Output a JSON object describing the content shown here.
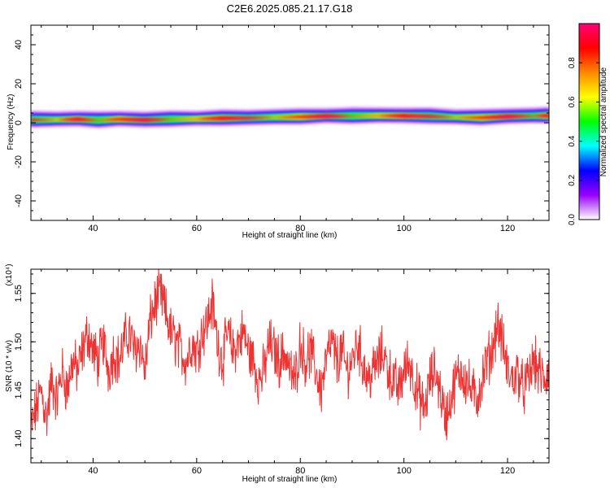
{
  "title": "C2E6.2025.085.21.17.G18",
  "colors": {
    "snr_line": "#ee3333",
    "plot_bg": "#ffffff",
    "axis": "#000000"
  },
  "chart_data": [
    {
      "type": "heatmap",
      "name": "spectrogram",
      "xlabel": "Height of straight line (km)",
      "ylabel": "Frequency (Hz)",
      "xlim": [
        28,
        128
      ],
      "ylim": [
        -50,
        50
      ],
      "x_ticks": [
        40,
        60,
        80,
        100,
        120
      ],
      "y_ticks": [
        40,
        20,
        0,
        -20,
        -40
      ],
      "x_tick_labels": [
        "40",
        "60",
        "80",
        "100",
        "120"
      ],
      "y_tick_labels": [
        "40",
        "20",
        "0",
        "-20",
        "-40"
      ],
      "ridge_frequency_hz": [
        [
          28,
          1.5
        ],
        [
          33,
          1.6
        ],
        [
          37,
          1.8
        ],
        [
          41,
          1.3
        ],
        [
          45,
          1.8
        ],
        [
          50,
          1.4
        ],
        [
          55,
          1.8
        ],
        [
          60,
          2.0
        ],
        [
          65,
          2.3
        ],
        [
          70,
          2.4
        ],
        [
          75,
          2.8
        ],
        [
          80,
          3.0
        ],
        [
          85,
          3.4
        ],
        [
          90,
          3.4
        ],
        [
          95,
          3.6
        ],
        [
          100,
          3.5
        ],
        [
          105,
          3.3
        ],
        [
          110,
          2.8
        ],
        [
          115,
          2.6
        ],
        [
          120,
          3.2
        ],
        [
          125,
          3.5
        ],
        [
          128,
          3.6
        ]
      ],
      "colorbar": {
        "label": "Normalized spectral amplitude",
        "range": [
          0,
          1
        ],
        "ticks": [
          0.0,
          0.2,
          0.4,
          0.6,
          0.8
        ],
        "tick_labels": [
          "0.0",
          "0.2",
          "0.4",
          "0.6",
          "0.8"
        ],
        "colormap": [
          "#ffffff",
          "#9900ff",
          "#0000ff",
          "#00ffff",
          "#00ff00",
          "#ffff00",
          "#ff8800",
          "#ff0000",
          "#ff0077"
        ]
      }
    },
    {
      "type": "line",
      "name": "snr",
      "xlabel": "Height of straight line (km)",
      "ylabel": "SNR (10 * v/v)",
      "scale_label": "(x10⁴)",
      "xlim": [
        28,
        128
      ],
      "ylim": [
        1.375,
        1.575
      ],
      "x_ticks": [
        40,
        60,
        80,
        100,
        120
      ],
      "y_ticks": [
        1.4,
        1.45,
        1.5,
        1.55
      ],
      "x_tick_labels": [
        "40",
        "60",
        "80",
        "100",
        "120"
      ],
      "y_tick_labels": [
        "1.40",
        "1.45",
        "1.50",
        "1.55"
      ],
      "series": [
        {
          "name": "SNR",
          "x": [
            28,
            29,
            30,
            31,
            32,
            33,
            34,
            35,
            36,
            37,
            38,
            39,
            40,
            41,
            42,
            43,
            44,
            45,
            46,
            47,
            48,
            49,
            50,
            51,
            52,
            53,
            54,
            55,
            56,
            57,
            58,
            59,
            60,
            61,
            62,
            63,
            64,
            65,
            66,
            67,
            68,
            69,
            70,
            71,
            72,
            73,
            74,
            75,
            76,
            77,
            78,
            79,
            80,
            81,
            82,
            83,
            84,
            85,
            86,
            87,
            88,
            89,
            90,
            91,
            92,
            93,
            94,
            95,
            96,
            97,
            98,
            99,
            100,
            101,
            102,
            103,
            104,
            105,
            106,
            107,
            108,
            109,
            110,
            111,
            112,
            113,
            114,
            115,
            116,
            117,
            118,
            119,
            120,
            121,
            122,
            123,
            124,
            125,
            126,
            127,
            128
          ],
          "values": [
            1.41,
            1.43,
            1.45,
            1.42,
            1.46,
            1.44,
            1.47,
            1.45,
            1.48,
            1.47,
            1.49,
            1.51,
            1.49,
            1.48,
            1.5,
            1.47,
            1.49,
            1.48,
            1.5,
            1.51,
            1.49,
            1.5,
            1.47,
            1.52,
            1.54,
            1.55,
            1.53,
            1.51,
            1.5,
            1.49,
            1.48,
            1.5,
            1.49,
            1.51,
            1.52,
            1.54,
            1.5,
            1.48,
            1.51,
            1.49,
            1.5,
            1.51,
            1.49,
            1.48,
            1.46,
            1.47,
            1.5,
            1.49,
            1.48,
            1.49,
            1.47,
            1.46,
            1.5,
            1.48,
            1.49,
            1.47,
            1.45,
            1.48,
            1.5,
            1.48,
            1.49,
            1.47,
            1.48,
            1.5,
            1.48,
            1.46,
            1.47,
            1.48,
            1.49,
            1.47,
            1.46,
            1.45,
            1.47,
            1.48,
            1.46,
            1.44,
            1.43,
            1.46,
            1.47,
            1.45,
            1.42,
            1.44,
            1.46,
            1.47,
            1.46,
            1.45,
            1.44,
            1.46,
            1.48,
            1.49,
            1.52,
            1.5,
            1.47,
            1.46,
            1.47,
            1.45,
            1.46,
            1.48,
            1.47,
            1.46,
            1.47
          ]
        }
      ]
    }
  ]
}
